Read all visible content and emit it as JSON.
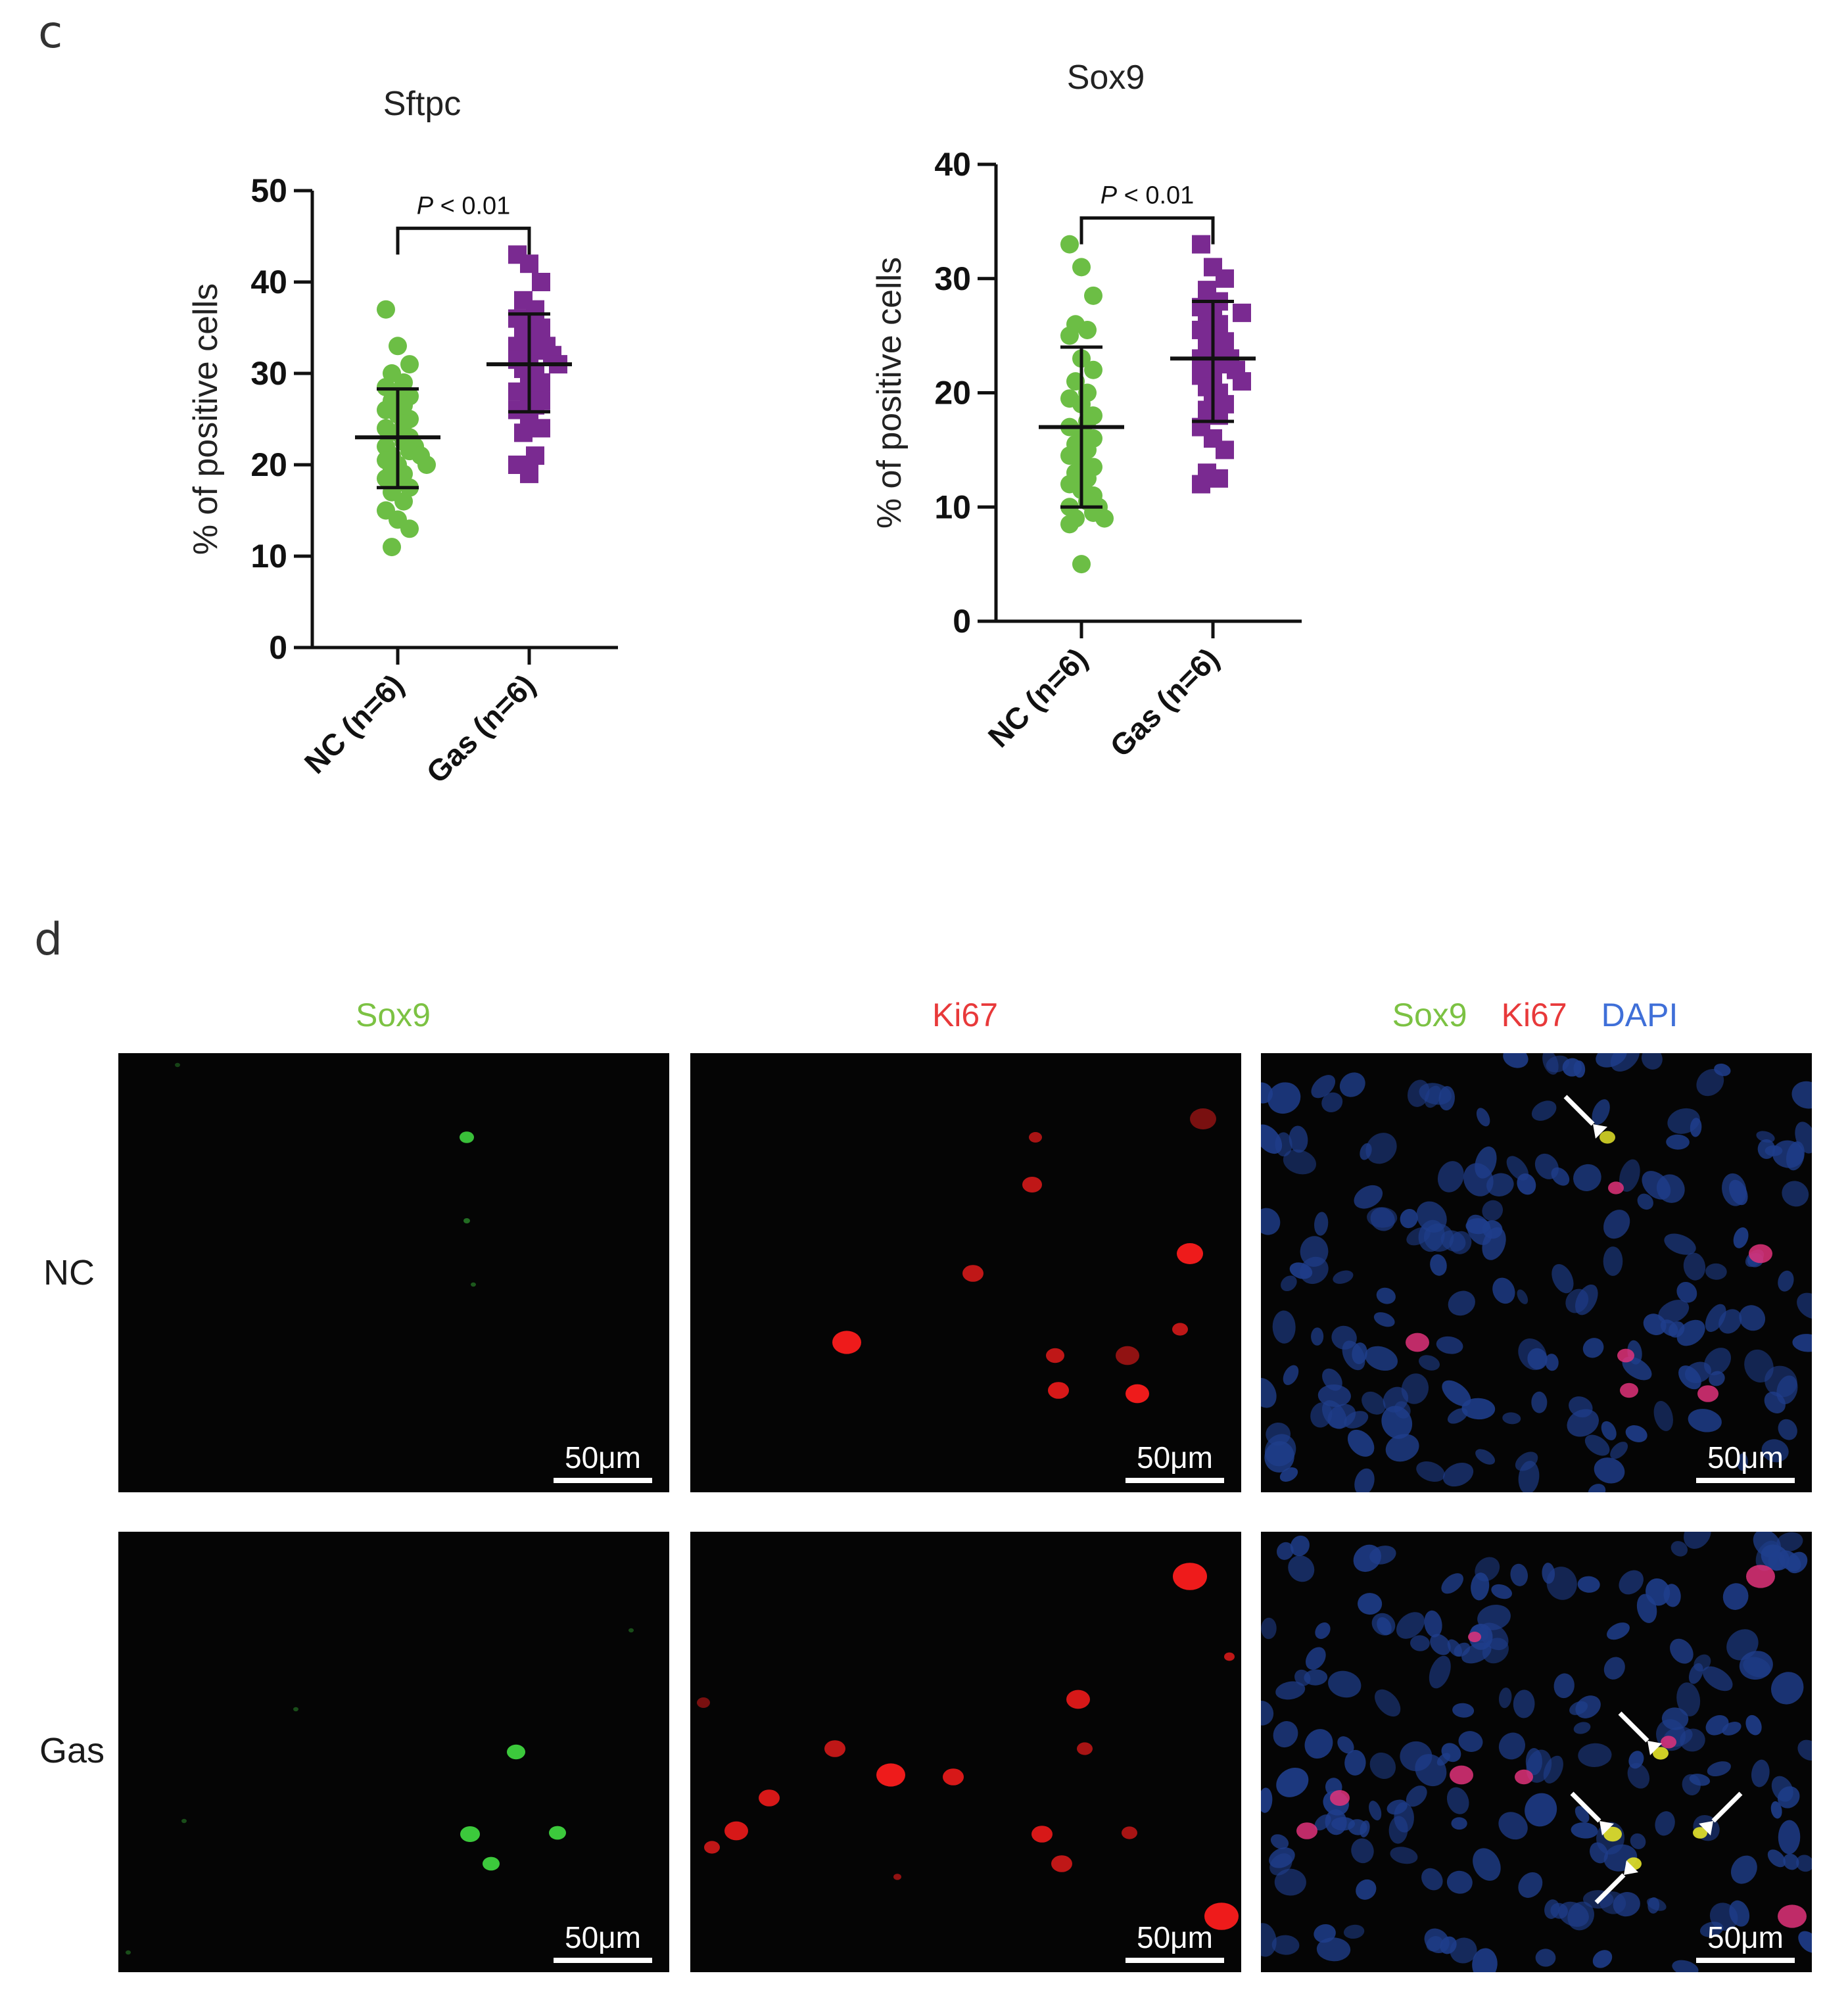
{
  "panel_c": {
    "letter": "c"
  },
  "panel_d": {
    "letter": "d",
    "columns": [
      {
        "parts": [
          {
            "text": "Sox9",
            "color": "#7cc243"
          }
        ]
      },
      {
        "parts": [
          {
            "text": "Ki67",
            "color": "#e8393a"
          }
        ]
      },
      {
        "parts": [
          {
            "text": "Sox9",
            "color": "#7cc243"
          },
          {
            "text": "Ki67",
            "color": "#e8393a"
          },
          {
            "text": "DAPI",
            "color": "#3f6fd8"
          }
        ]
      }
    ],
    "rows": [
      "NC",
      "Gas"
    ],
    "scale_bar": "50μm",
    "arrow_color": "#ffffff"
  },
  "chart_data": [
    {
      "type": "scatter",
      "title": "Sftpc",
      "ylabel": "% of positive cells",
      "xlabel": "",
      "ylim": [
        0,
        50
      ],
      "yticks": [
        0,
        10,
        20,
        30,
        40,
        50
      ],
      "categories": [
        "NC (n=6)",
        "Gas (n=6)"
      ],
      "annotation": {
        "prefix": "P",
        "text": " < 0.01"
      },
      "series": [
        {
          "category": "NC (n=6)",
          "marker": "circle",
          "color": "#6cbe45",
          "mean": 23,
          "sd_low": 17.5,
          "sd_high": 28.3,
          "values": [
            37,
            33,
            31,
            30,
            29,
            28.5,
            28,
            27.5,
            27,
            26.5,
            26,
            25.5,
            25,
            25,
            24.5,
            24,
            23.5,
            23,
            23,
            22.5,
            22,
            22,
            21.5,
            21,
            21,
            20.5,
            20,
            20,
            19.5,
            19,
            18.5,
            18,
            17.5,
            17,
            16,
            15,
            14,
            13,
            11
          ]
        },
        {
          "category": "Gas (n=6)",
          "marker": "square",
          "color": "#7a2a91",
          "mean": 31,
          "sd_low": 25.8,
          "sd_high": 36.5,
          "values": [
            43,
            42,
            40,
            38,
            37,
            36,
            35.5,
            35,
            34,
            33.5,
            33,
            33,
            32.5,
            32,
            32,
            31.5,
            31,
            31,
            30.5,
            30,
            30,
            29.5,
            29,
            29,
            28.5,
            28,
            27.5,
            27,
            27,
            26.5,
            26,
            25,
            24,
            23.5,
            21,
            20,
            19
          ]
        }
      ]
    },
    {
      "type": "scatter",
      "title": "Sox9",
      "ylabel": "% of positive cells",
      "xlabel": "",
      "ylim": [
        0,
        40
      ],
      "yticks": [
        0,
        10,
        20,
        30,
        40
      ],
      "categories": [
        "NC (n=6)",
        "Gas (n=6)"
      ],
      "annotation": {
        "prefix": "P",
        "text": " < 0.01"
      },
      "series": [
        {
          "category": "NC (n=6)",
          "marker": "circle",
          "color": "#6cbe45",
          "mean": 17,
          "sd_low": 10,
          "sd_high": 24,
          "values": [
            33,
            31,
            28.5,
            26,
            25.5,
            25,
            23,
            22,
            21,
            20,
            19.5,
            19,
            18,
            18,
            17.5,
            17,
            16.5,
            16,
            15.5,
            15,
            14.5,
            14,
            13.5,
            13,
            12.5,
            12,
            11.5,
            11,
            11,
            10.5,
            10,
            10,
            9.5,
            9,
            9,
            8.5,
            5
          ]
        },
        {
          "category": "Gas (n=6)",
          "marker": "square",
          "color": "#7a2a91",
          "mean": 23,
          "sd_low": 17.5,
          "sd_high": 28,
          "values": [
            33,
            31,
            30,
            29,
            28,
            27.5,
            27,
            27,
            26.5,
            26,
            25.5,
            25,
            24.5,
            24,
            23.5,
            23,
            23,
            22.5,
            22,
            22,
            21.5,
            21,
            21,
            20.5,
            20,
            20,
            19.5,
            19,
            18.5,
            18,
            17,
            16,
            15,
            13,
            12.5,
            12
          ]
        }
      ]
    }
  ]
}
